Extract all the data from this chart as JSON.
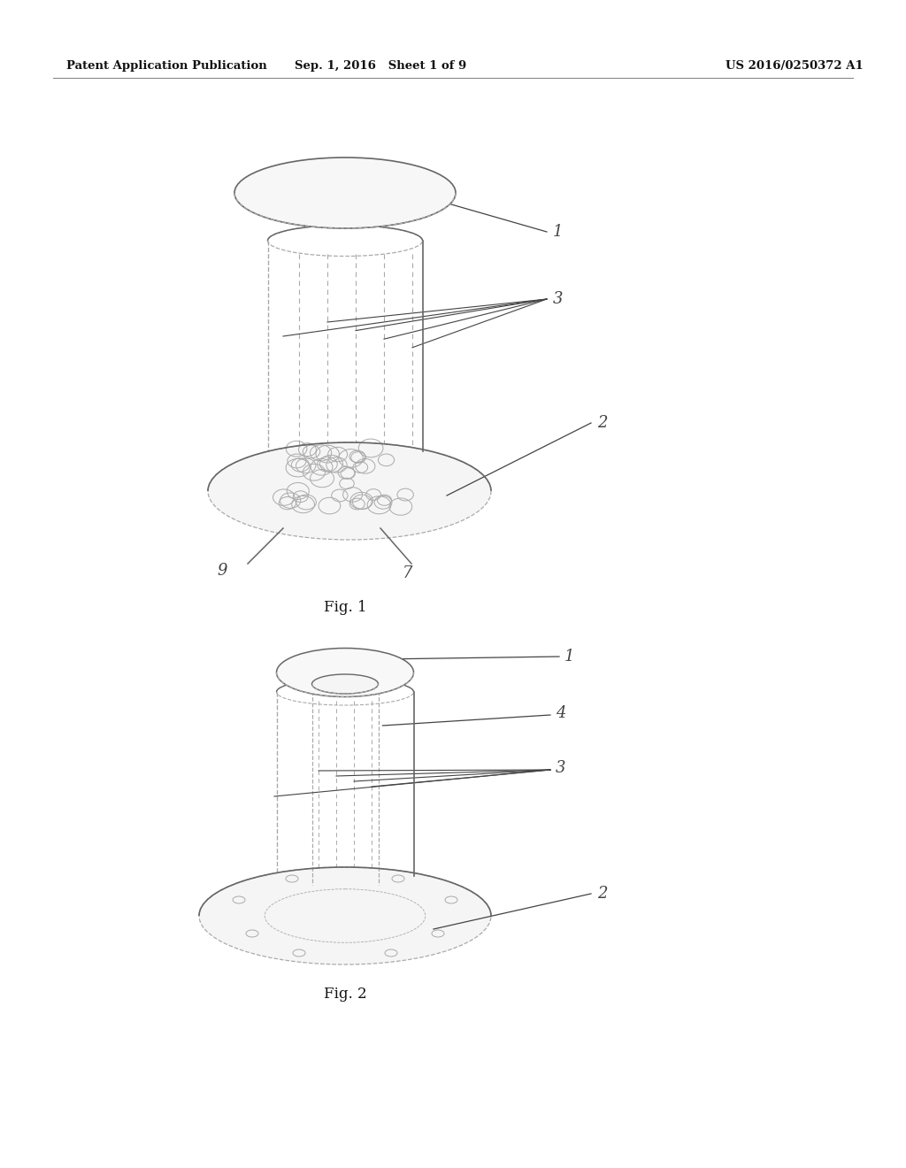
{
  "background_color": "#ffffff",
  "header_left": "Patent Application Publication",
  "header_mid": "Sep. 1, 2016   Sheet 1 of 9",
  "header_right": "US 2016/0250372 A1",
  "fig1_caption": "Fig. 1",
  "fig2_caption": "Fig. 2",
  "line_color": "#bbbbbb",
  "dark_line_color": "#666666",
  "annotation_color": "#444444",
  "dashed_color": "#aaaaaa"
}
